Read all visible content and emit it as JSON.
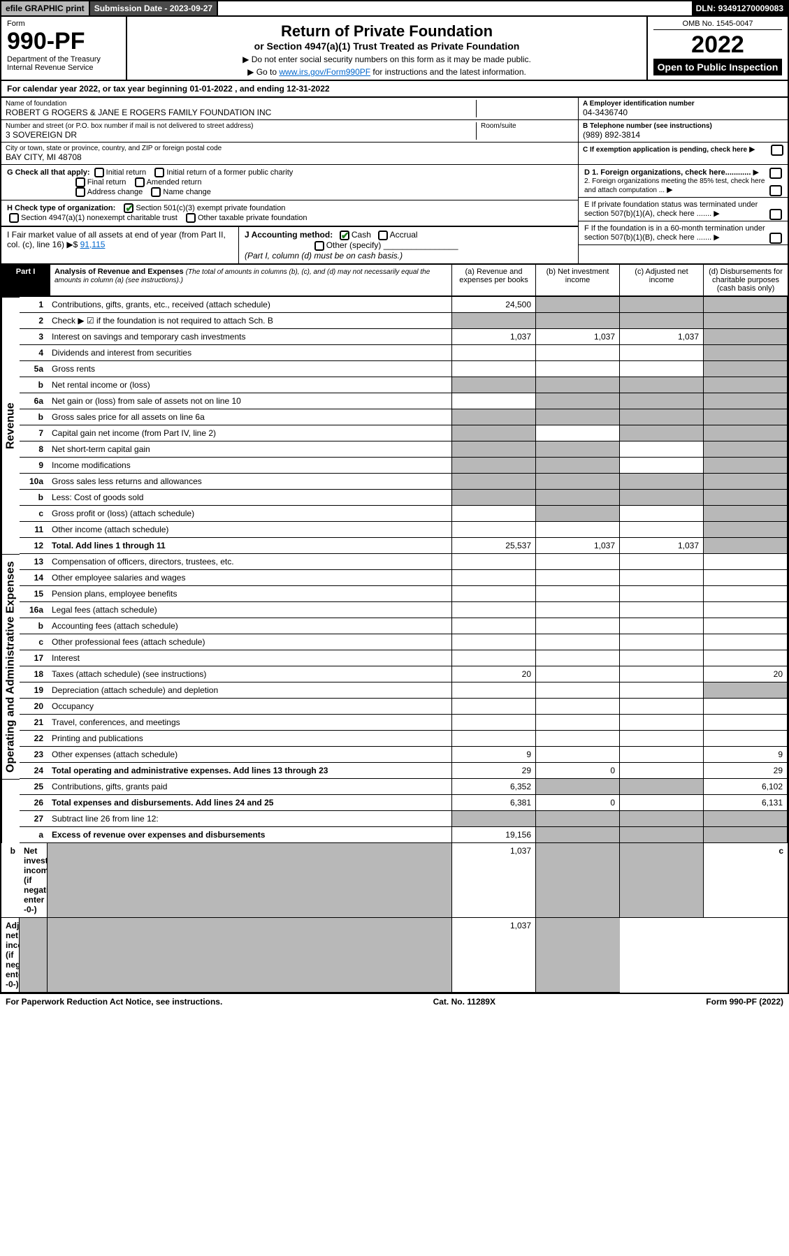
{
  "top": {
    "efile": "efile GRAPHIC print",
    "subm_label": "Submission Date - 2023-09-27",
    "dln": "DLN: 93491270009083"
  },
  "header": {
    "form_label": "Form",
    "form_no": "990-PF",
    "dept": "Department of the Treasury",
    "irs": "Internal Revenue Service",
    "title": "Return of Private Foundation",
    "subtitle": "or Section 4947(a)(1) Trust Treated as Private Foundation",
    "inst1": "▶ Do not enter social security numbers on this form as it may be made public.",
    "inst2_pre": "▶ Go to ",
    "inst2_link": "www.irs.gov/Form990PF",
    "inst2_post": " for instructions and the latest information.",
    "omb": "OMB No. 1545-0047",
    "year": "2022",
    "open": "Open to Public Inspection"
  },
  "cal_year": "For calendar year 2022, or tax year beginning 01-01-2022             , and ending 12-31-2022",
  "entity": {
    "name_lbl": "Name of foundation",
    "name": "ROBERT G ROGERS & JANE E ROGERS FAMILY FOUNDATION INC",
    "addr_lbl": "Number and street (or P.O. box number if mail is not delivered to street address)",
    "addr": "3 SOVEREIGN DR",
    "room_lbl": "Room/suite",
    "city_lbl": "City or town, state or province, country, and ZIP or foreign postal code",
    "city": "BAY CITY, MI  48708",
    "ein_lbl": "A Employer identification number",
    "ein": "04-3436740",
    "phone_lbl": "B Telephone number (see instructions)",
    "phone": "(989) 892-3814",
    "c_lbl": "C If exemption application is pending, check here",
    "d1": "D 1. Foreign organizations, check here............",
    "d2": "2. Foreign organizations meeting the 85% test, check here and attach computation ...",
    "e_lbl": "E  If private foundation status was terminated under section 507(b)(1)(A), check here .......",
    "f_lbl": "F  If the foundation is in a 60-month termination under section 507(b)(1)(B), check here .......",
    "g_lbl": "G Check all that apply:",
    "g_opts": [
      "Initial return",
      "Initial return of a former public charity",
      "Final return",
      "Amended return",
      "Address change",
      "Name change"
    ],
    "h_lbl": "H Check type of organization:",
    "h_opt1": "Section 501(c)(3) exempt private foundation",
    "h_opt2": "Section 4947(a)(1) nonexempt charitable trust",
    "h_opt3": "Other taxable private foundation",
    "i_lbl": "I Fair market value of all assets at end of year (from Part II, col. (c), line 16) ▶$ ",
    "i_val": "91,115",
    "j_lbl": "J Accounting method:",
    "j_cash": "Cash",
    "j_accrual": "Accrual",
    "j_other": "Other (specify)",
    "j_note": "(Part I, column (d) must be on cash basis.)"
  },
  "part1": {
    "label": "Part I",
    "title": "Analysis of Revenue and Expenses",
    "title_note": " (The total of amounts in columns (b), (c), and (d) may not necessarily equal the amounts in column (a) (see instructions).)",
    "col_a": "(a) Revenue and expenses per books",
    "col_b": "(b) Net investment income",
    "col_c": "(c) Adjusted net income",
    "col_d": "(d) Disbursements for charitable purposes (cash basis only)"
  },
  "sections": {
    "revenue": "Revenue",
    "opexp": "Operating and Administrative Expenses"
  },
  "rows": [
    {
      "n": "1",
      "d": "Contributions, gifts, grants, etc., received (attach schedule)",
      "a": "24,500",
      "b": "",
      "c": "",
      "dval": "",
      "sb": true,
      "sc": true,
      "sd": true
    },
    {
      "n": "2",
      "d": "Check ▶ ☑ if the foundation is not required to attach Sch. B",
      "a": "",
      "b": "",
      "c": "",
      "dval": "",
      "sa": true,
      "sb": true,
      "sc": true,
      "sd": true
    },
    {
      "n": "3",
      "d": "Interest on savings and temporary cash investments",
      "a": "1,037",
      "b": "1,037",
      "c": "1,037",
      "dval": "",
      "sd": true
    },
    {
      "n": "4",
      "d": "Dividends and interest from securities",
      "a": "",
      "b": "",
      "c": "",
      "dval": "",
      "sd": true
    },
    {
      "n": "5a",
      "d": "Gross rents",
      "a": "",
      "b": "",
      "c": "",
      "dval": "",
      "sd": true
    },
    {
      "n": "b",
      "d": "Net rental income or (loss)",
      "a": "",
      "b": "",
      "c": "",
      "dval": "",
      "sa": true,
      "sb": true,
      "sc": true,
      "sd": true
    },
    {
      "n": "6a",
      "d": "Net gain or (loss) from sale of assets not on line 10",
      "a": "",
      "b": "",
      "c": "",
      "dval": "",
      "sb": true,
      "sc": true,
      "sd": true
    },
    {
      "n": "b",
      "d": "Gross sales price for all assets on line 6a",
      "a": "",
      "b": "",
      "c": "",
      "dval": "",
      "sa": true,
      "sb": true,
      "sc": true,
      "sd": true
    },
    {
      "n": "7",
      "d": "Capital gain net income (from Part IV, line 2)",
      "a": "",
      "b": "",
      "c": "",
      "dval": "",
      "sa": true,
      "sc": true,
      "sd": true
    },
    {
      "n": "8",
      "d": "Net short-term capital gain",
      "a": "",
      "b": "",
      "c": "",
      "dval": "",
      "sa": true,
      "sb": true,
      "sd": true
    },
    {
      "n": "9",
      "d": "Income modifications",
      "a": "",
      "b": "",
      "c": "",
      "dval": "",
      "sa": true,
      "sb": true,
      "sd": true
    },
    {
      "n": "10a",
      "d": "Gross sales less returns and allowances",
      "a": "",
      "b": "",
      "c": "",
      "dval": "",
      "sa": true,
      "sb": true,
      "sc": true,
      "sd": true
    },
    {
      "n": "b",
      "d": "Less: Cost of goods sold",
      "a": "",
      "b": "",
      "c": "",
      "dval": "",
      "sa": true,
      "sb": true,
      "sc": true,
      "sd": true
    },
    {
      "n": "c",
      "d": "Gross profit or (loss) (attach schedule)",
      "a": "",
      "b": "",
      "c": "",
      "dval": "",
      "sb": true,
      "sd": true
    },
    {
      "n": "11",
      "d": "Other income (attach schedule)",
      "a": "",
      "b": "",
      "c": "",
      "dval": "",
      "sd": true
    },
    {
      "n": "12",
      "d": "Total. Add lines 1 through 11",
      "bold": true,
      "a": "25,537",
      "b": "1,037",
      "c": "1,037",
      "dval": "",
      "sd": true
    },
    {
      "n": "13",
      "d": "Compensation of officers, directors, trustees, etc.",
      "a": "",
      "b": "",
      "c": "",
      "dval": ""
    },
    {
      "n": "14",
      "d": "Other employee salaries and wages",
      "a": "",
      "b": "",
      "c": "",
      "dval": ""
    },
    {
      "n": "15",
      "d": "Pension plans, employee benefits",
      "a": "",
      "b": "",
      "c": "",
      "dval": ""
    },
    {
      "n": "16a",
      "d": "Legal fees (attach schedule)",
      "a": "",
      "b": "",
      "c": "",
      "dval": ""
    },
    {
      "n": "b",
      "d": "Accounting fees (attach schedule)",
      "a": "",
      "b": "",
      "c": "",
      "dval": ""
    },
    {
      "n": "c",
      "d": "Other professional fees (attach schedule)",
      "a": "",
      "b": "",
      "c": "",
      "dval": ""
    },
    {
      "n": "17",
      "d": "Interest",
      "a": "",
      "b": "",
      "c": "",
      "dval": ""
    },
    {
      "n": "18",
      "d": "Taxes (attach schedule) (see instructions)",
      "a": "20",
      "b": "",
      "c": "",
      "dval": "20"
    },
    {
      "n": "19",
      "d": "Depreciation (attach schedule) and depletion",
      "a": "",
      "b": "",
      "c": "",
      "dval": "",
      "sd": true
    },
    {
      "n": "20",
      "d": "Occupancy",
      "a": "",
      "b": "",
      "c": "",
      "dval": ""
    },
    {
      "n": "21",
      "d": "Travel, conferences, and meetings",
      "a": "",
      "b": "",
      "c": "",
      "dval": ""
    },
    {
      "n": "22",
      "d": "Printing and publications",
      "a": "",
      "b": "",
      "c": "",
      "dval": ""
    },
    {
      "n": "23",
      "d": "Other expenses (attach schedule)",
      "a": "9",
      "b": "",
      "c": "",
      "dval": "9"
    },
    {
      "n": "24",
      "d": "Total operating and administrative expenses. Add lines 13 through 23",
      "bold": true,
      "a": "29",
      "b": "0",
      "c": "",
      "dval": "29"
    },
    {
      "n": "25",
      "d": "Contributions, gifts, grants paid",
      "a": "6,352",
      "b": "",
      "c": "",
      "dval": "6,102",
      "sb": true,
      "sc": true
    },
    {
      "n": "26",
      "d": "Total expenses and disbursements. Add lines 24 and 25",
      "bold": true,
      "a": "6,381",
      "b": "0",
      "c": "",
      "dval": "6,131"
    },
    {
      "n": "27",
      "d": "Subtract line 26 from line 12:",
      "a": "",
      "b": "",
      "c": "",
      "dval": "",
      "sa": true,
      "sb": true,
      "sc": true,
      "sd": true
    },
    {
      "n": "a",
      "d": "Excess of revenue over expenses and disbursements",
      "bold": true,
      "a": "19,156",
      "b": "",
      "c": "",
      "dval": "",
      "sb": true,
      "sc": true,
      "sd": true
    },
    {
      "n": "b",
      "d": "Net investment income (if negative, enter -0-)",
      "bold": true,
      "a": "",
      "b": "1,037",
      "c": "",
      "dval": "",
      "sa": true,
      "sc": true,
      "sd": true
    },
    {
      "n": "c",
      "d": "Adjusted net income (if negative, enter -0-)",
      "bold": true,
      "a": "",
      "b": "",
      "c": "1,037",
      "dval": "",
      "sa": true,
      "sb": true,
      "sd": true
    }
  ],
  "footer": {
    "left": "For Paperwork Reduction Act Notice, see instructions.",
    "mid": "Cat. No. 11289X",
    "right": "Form 990-PF (2022)"
  },
  "style": {
    "shaded_bg": "#b8b8b8",
    "link_color": "#0066cc",
    "check_color": "#1a7a1a"
  }
}
